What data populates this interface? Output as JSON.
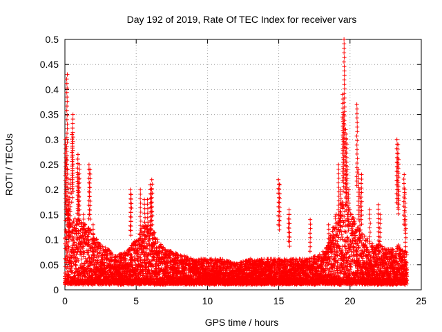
{
  "chart_data": {
    "type": "scatter",
    "title": "Day 192 of 2019, Rate Of TEC Index for receiver vars",
    "xlabel": "GPS time / hours",
    "ylabel": "ROTI / TECUs",
    "xlim": [
      0,
      25
    ],
    "ylim": [
      0,
      0.5
    ],
    "x_ticks": [
      0,
      5,
      10,
      15,
      20,
      25
    ],
    "x_tick_labels": [
      "0",
      "5",
      "10",
      "15",
      "20",
      "25"
    ],
    "y_ticks": [
      0,
      0.05,
      0.1,
      0.15,
      0.2,
      0.25,
      0.3,
      0.35,
      0.4,
      0.45,
      0.5
    ],
    "y_tick_labels": [
      "0",
      "0.05",
      "0.1",
      "0.15",
      "0.2",
      "0.25",
      "0.3",
      "0.35",
      "0.4",
      "0.45",
      "0.5"
    ],
    "grid": true,
    "marker": "+",
    "series": [
      {
        "name": "ROTI",
        "color": "#ff0000",
        "x": [
          0.05,
          0.1,
          0.15,
          0.2,
          0.25,
          0.3,
          0.35,
          0.5,
          0.55,
          0.9,
          0.95,
          1.0,
          1.3,
          1.7,
          1.75,
          2.0,
          4.6,
          4.65,
          5.3,
          5.6,
          5.8,
          6.0,
          6.05,
          6.1,
          15.0,
          15.05,
          15.7,
          15.75,
          17.2,
          18.5,
          19.2,
          19.35,
          19.5,
          19.55,
          19.6,
          19.7,
          19.75,
          19.8,
          19.9,
          20.5,
          20.6,
          20.7,
          20.8,
          21.4,
          22.0,
          22.1,
          23.3,
          23.35,
          23.4,
          23.8,
          23.85,
          23.9
        ],
        "y": [
          0.3,
          0.26,
          0.43,
          0.24,
          0.18,
          0.16,
          0.22,
          0.31,
          0.35,
          0.27,
          0.23,
          0.25,
          0.15,
          0.25,
          0.24,
          0.13,
          0.2,
          0.19,
          0.2,
          0.18,
          0.18,
          0.21,
          0.2,
          0.22,
          0.22,
          0.21,
          0.16,
          0.15,
          0.14,
          0.13,
          0.25,
          0.2,
          0.39,
          0.35,
          0.5,
          0.32,
          0.3,
          0.24,
          0.2,
          0.37,
          0.24,
          0.2,
          0.23,
          0.16,
          0.17,
          0.15,
          0.3,
          0.29,
          0.26,
          0.23,
          0.2,
          0.14
        ],
        "activity_profile": {
          "hours": [
            0,
            0.5,
            1,
            1.5,
            2,
            2.5,
            3,
            3.5,
            4,
            4.5,
            5,
            5.5,
            6,
            6.5,
            7,
            8,
            9,
            10,
            11,
            12,
            13,
            14,
            15,
            16,
            17,
            18,
            18.5,
            19,
            19.5,
            20,
            20.5,
            21,
            21.5,
            22,
            22.5,
            23,
            23.5,
            24
          ],
          "typical_max": [
            0.16,
            0.13,
            0.13,
            0.12,
            0.1,
            0.08,
            0.07,
            0.06,
            0.06,
            0.07,
            0.09,
            0.12,
            0.12,
            0.09,
            0.07,
            0.06,
            0.05,
            0.05,
            0.05,
            0.04,
            0.05,
            0.05,
            0.05,
            0.05,
            0.05,
            0.06,
            0.08,
            0.14,
            0.17,
            0.15,
            0.12,
            0.1,
            0.08,
            0.08,
            0.07,
            0.07,
            0.08,
            0.06
          ]
        }
      }
    ]
  }
}
